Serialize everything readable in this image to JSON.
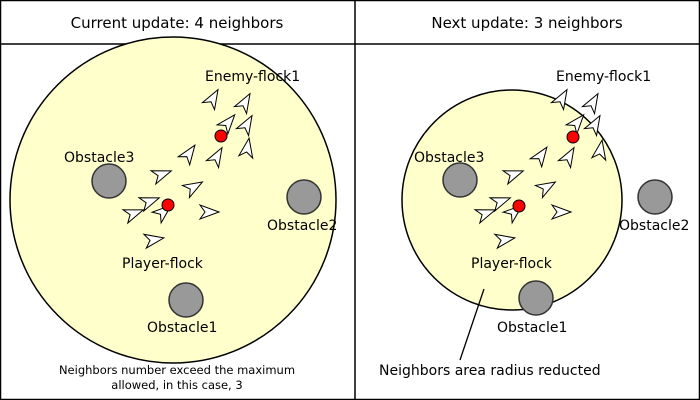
{
  "colors": {
    "area_fill": "#ffffcc",
    "area_stroke": "#000000",
    "obstacle": "#999999",
    "leader": "#ff0000",
    "boid": "#ffffff"
  },
  "left": {
    "title": "Current update: 4 neighbors",
    "labels": {
      "enemy_flock": "Enemy-flock1",
      "obstacle3": "Obstacle3",
      "obstacle2": "Obstacle2",
      "player_flock": "Player-flock",
      "obstacle1": "Obstacle1"
    },
    "note_line1": "Neighbors number exceed the maximum",
    "note_line2": "allowed, in this case, 3"
  },
  "right": {
    "title": "Next update: 3 neighbors",
    "labels": {
      "enemy_flock": "Enemy-flock1",
      "obstacle3": "Obstacle3",
      "obstacle2": "Obstacle2",
      "player_flock": "Player-flock",
      "obstacle1": "Obstacle1"
    },
    "note": "Neighbors area radius reducted"
  }
}
